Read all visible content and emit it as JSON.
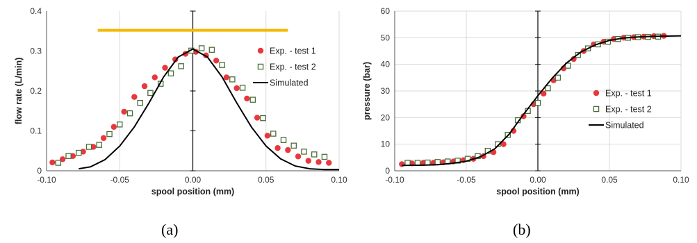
{
  "chart_data": [
    {
      "type": "scatter",
      "panel_label": "(a)",
      "xlabel": "spool position (mm)",
      "ylabel": "flow rate  (L/min)",
      "xlim": [
        -0.1,
        0.1
      ],
      "ylim": [
        0,
        0.4
      ],
      "xticks": [
        -0.1,
        -0.05,
        0.0,
        0.05,
        0.1
      ],
      "xtick_labels": [
        "-0.10",
        "-0.05",
        "0.00",
        "0.05",
        "0.10"
      ],
      "yticks": [
        0,
        0.1,
        0.2,
        0.3,
        0.4
      ],
      "ytick_labels": [
        "0",
        "0.1",
        "0.2",
        "0.3",
        "0.4"
      ],
      "grid": "vertical",
      "legend_position": "right",
      "reference_line": {
        "x": [
          -0.065,
          0.065
        ],
        "y": 0.352,
        "color": "#f5b800"
      },
      "series": [
        {
          "name": "Exp. - test 1",
          "marker": "filled-circle",
          "color": "#e8383d",
          "x": [
            -0.096,
            -0.089,
            -0.082,
            -0.075,
            -0.068,
            -0.061,
            -0.054,
            -0.047,
            -0.04,
            -0.033,
            -0.026,
            -0.019,
            -0.012,
            -0.005,
            0.002,
            0.009,
            0.016,
            0.023,
            0.03,
            0.037,
            0.044,
            0.051,
            0.058,
            0.065,
            0.072,
            0.079,
            0.086,
            0.093
          ],
          "y": [
            0.021,
            0.029,
            0.037,
            0.048,
            0.06,
            0.082,
            0.11,
            0.148,
            0.185,
            0.212,
            0.234,
            0.258,
            0.279,
            0.293,
            0.298,
            0.289,
            0.276,
            0.234,
            0.207,
            0.181,
            0.133,
            0.088,
            0.057,
            0.052,
            0.036,
            0.025,
            0.022,
            0.02
          ]
        },
        {
          "name": "Exp. - test 2",
          "marker": "hollow-square",
          "color": "#4a6e3a",
          "x": [
            -0.092,
            -0.085,
            -0.078,
            -0.071,
            -0.064,
            -0.057,
            -0.05,
            -0.043,
            -0.036,
            -0.029,
            -0.022,
            -0.015,
            -0.008,
            -0.001,
            0.006,
            0.013,
            0.02,
            0.027,
            0.034,
            0.041,
            0.048,
            0.055,
            0.062,
            0.069,
            0.076,
            0.083,
            0.09
          ],
          "y": [
            0.02,
            0.037,
            0.045,
            0.06,
            0.065,
            0.092,
            0.116,
            0.144,
            0.17,
            0.195,
            0.218,
            0.244,
            0.262,
            0.301,
            0.307,
            0.303,
            0.265,
            0.229,
            0.208,
            0.178,
            0.132,
            0.093,
            0.077,
            0.063,
            0.048,
            0.041,
            0.035
          ]
        },
        {
          "name": "Simulated",
          "marker": "line",
          "color": "#000000",
          "x": [
            -0.078,
            -0.07,
            -0.06,
            -0.05,
            -0.04,
            -0.03,
            -0.02,
            -0.01,
            0.0,
            0.01,
            0.02,
            0.03,
            0.04,
            0.05,
            0.06,
            0.07,
            0.08,
            0.09,
            0.1
          ],
          "y": [
            0.005,
            0.01,
            0.028,
            0.062,
            0.11,
            0.17,
            0.235,
            0.285,
            0.305,
            0.285,
            0.235,
            0.17,
            0.11,
            0.062,
            0.03,
            0.012,
            0.005,
            0.003,
            0.003
          ]
        }
      ]
    },
    {
      "type": "scatter",
      "panel_label": "(b)",
      "xlabel": "spool position (mm)",
      "ylabel": "pressure (bar)",
      "xlim": [
        -0.1,
        0.1
      ],
      "ylim": [
        0,
        60
      ],
      "xticks": [
        -0.1,
        -0.05,
        0.0,
        0.05,
        0.1
      ],
      "xtick_labels": [
        "-0.10",
        "-0.05",
        "0.00",
        "0.05",
        "0.10"
      ],
      "yticks": [
        0,
        10,
        20,
        30,
        40,
        50,
        60
      ],
      "ytick_labels": [
        "0",
        "10",
        "20",
        "30",
        "40",
        "50",
        "60"
      ],
      "grid": "both",
      "legend_position": "center-right",
      "series": [
        {
          "name": "Exp. - test 1",
          "marker": "filled-circle",
          "color": "#e8383d",
          "x": [
            -0.095,
            -0.088,
            -0.08,
            -0.073,
            -0.066,
            -0.059,
            -0.052,
            -0.045,
            -0.038,
            -0.031,
            -0.024,
            -0.017,
            -0.01,
            -0.003,
            0.004,
            0.011,
            0.018,
            0.025,
            0.032,
            0.039,
            0.046,
            0.053,
            0.06,
            0.067,
            0.074,
            0.081,
            0.088
          ],
          "y": [
            2.5,
            2.8,
            3.0,
            3.0,
            3.2,
            3.5,
            4.0,
            4.5,
            5.5,
            7.0,
            10.0,
            15.0,
            20.5,
            25.0,
            29.0,
            34.0,
            38.5,
            42.0,
            45.0,
            47.5,
            48.5,
            49.5,
            50.0,
            50.2,
            50.4,
            50.6,
            50.7
          ]
        },
        {
          "name": "Exp. - test 2",
          "marker": "hollow-square",
          "color": "#4a6e3a",
          "x": [
            -0.091,
            -0.084,
            -0.077,
            -0.07,
            -0.063,
            -0.056,
            -0.049,
            -0.042,
            -0.035,
            -0.028,
            -0.021,
            -0.014,
            -0.007,
            0.0,
            0.007,
            0.014,
            0.021,
            0.028,
            0.035,
            0.042,
            0.049,
            0.056,
            0.063,
            0.07,
            0.077,
            0.084
          ],
          "y": [
            3.0,
            3.0,
            3.1,
            3.3,
            3.5,
            3.8,
            4.5,
            5.5,
            7.5,
            10.0,
            13.5,
            19.0,
            22.5,
            25.5,
            31.0,
            35.0,
            39.5,
            43.5,
            46.0,
            47.5,
            48.5,
            49.5,
            50.0,
            50.2,
            50.3,
            50.4
          ]
        },
        {
          "name": "Simulated",
          "marker": "line",
          "color": "#000000",
          "x": [
            -0.095,
            -0.08,
            -0.07,
            -0.06,
            -0.05,
            -0.04,
            -0.03,
            -0.02,
            -0.01,
            0.0,
            0.01,
            0.02,
            0.03,
            0.04,
            0.05,
            0.06,
            0.07,
            0.08,
            0.09,
            0.1
          ],
          "y": [
            2.0,
            2.1,
            2.3,
            2.8,
            3.6,
            5.3,
            8.3,
            13.8,
            21.2,
            28.2,
            34.8,
            40.5,
            44.6,
            47.3,
            49.0,
            49.9,
            50.3,
            50.5,
            50.6,
            50.7
          ]
        }
      ]
    }
  ]
}
